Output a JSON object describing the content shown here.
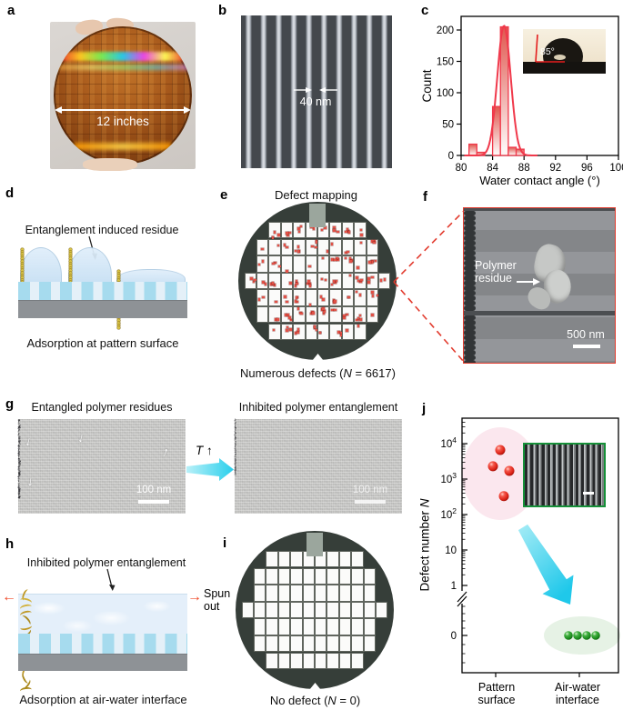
{
  "colors": {
    "accent_red": "#f0394b",
    "bar_fill_top": "#e0574e",
    "wafer_dark": "#363e39",
    "defect_red": "#e25045",
    "cyan_arrow": "#2fd0ec",
    "spun_arrow_red": "#f04a28",
    "polymer_yellow": "#c09a28",
    "pink_halo": "#fbe7ee",
    "green_halo": "#e6f2e5",
    "inset_border_green": "#159038",
    "f_border_red": "#e23b2e"
  },
  "wafer": {
    "grid_rows": [
      8,
      10,
      10,
      12,
      10,
      10,
      8
    ]
  },
  "panels": {
    "a": {
      "label": "a",
      "annotation": "12 inches"
    },
    "b": {
      "label": "b",
      "annotation": "40 nm"
    },
    "c": {
      "label": "c",
      "inset_angle": "85°"
    },
    "d": {
      "label": "d",
      "title": "Entanglement induced residue",
      "caption": "Adsorption at pattern surface"
    },
    "e": {
      "label": "e",
      "title": "Defect mapping",
      "caption": {
        "pre": "Numerous defects (",
        "var": "N",
        "post": " = 6617)"
      }
    },
    "f": {
      "label": "f",
      "annotation": {
        "line1": "Polymer",
        "line2": "residue"
      },
      "scalebar": "500 nm"
    },
    "g": {
      "label": "g",
      "left_title": "Entangled polymer residues",
      "right_title": "Inhibited polymer entanglement",
      "left_scalebar": "100 nm",
      "right_scalebar": "100 nm",
      "temp_var": "T",
      "temp_arrow": "↑"
    },
    "h": {
      "label": "h",
      "title": "Inhibited polymer entanglement",
      "spun_line1": "Spun",
      "spun_line2": "out",
      "caption": "Adsorption at air-water interface"
    },
    "i": {
      "label": "i",
      "caption": {
        "pre": "No defect (",
        "var": "N",
        "post": " = 0)"
      }
    },
    "j": {
      "label": "j",
      "ylabel_pre": "Defect number ",
      "ylabel_var": "N",
      "categories": [
        {
          "line1": "Pattern",
          "line2": "surface"
        },
        {
          "line1": "Air-water",
          "line2": "interface"
        }
      ]
    }
  },
  "chart_data": [
    {
      "panel": "c",
      "type": "bar",
      "title": "",
      "xlabel": "Water contact angle (°)",
      "ylabel": "Count",
      "xlim": [
        80,
        100
      ],
      "ylim": [
        0,
        215
      ],
      "xticks": [
        80,
        84,
        88,
        92,
        96,
        100
      ],
      "yticks": [
        0,
        50,
        100,
        150,
        200
      ],
      "bin_width": 1,
      "bins": [
        {
          "x": 81,
          "count": 18
        },
        {
          "x": 82,
          "count": 5
        },
        {
          "x": 84,
          "count": 78
        },
        {
          "x": 85,
          "count": 205
        },
        {
          "x": 86,
          "count": 13
        },
        {
          "x": 87,
          "count": 10
        }
      ],
      "fit": {
        "type": "gaussian",
        "peak_x": 85.45,
        "peak_y": 207,
        "sigma": 0.85
      },
      "inset_annotation": "85°",
      "grid": false
    },
    {
      "panel": "j",
      "type": "scatter",
      "ylabel": "Defect number N",
      "yscale": "log-with-zero-break",
      "categories": [
        "Pattern surface",
        "Air-water interface"
      ],
      "series": [
        {
          "name": "Pattern surface",
          "color": "red",
          "values": [
            6600,
            2300,
            1700,
            330
          ]
        },
        {
          "name": "Air-water interface",
          "color": "green",
          "values": [
            0,
            0,
            0,
            0
          ]
        }
      ],
      "yticks": [
        {
          "base": "10",
          "sup": "4",
          "value": 10000
        },
        {
          "base": "10",
          "sup": "3",
          "value": 1000
        },
        {
          "base": "10",
          "sup": "2",
          "value": 100
        },
        {
          "base": "10",
          "sup": "",
          "value": 10
        },
        {
          "base": "1",
          "sup": "",
          "value": 1
        },
        {
          "base": "0",
          "sup": "",
          "value": 0
        }
      ],
      "axis_break": true,
      "legend": false,
      "grid": false
    }
  ]
}
